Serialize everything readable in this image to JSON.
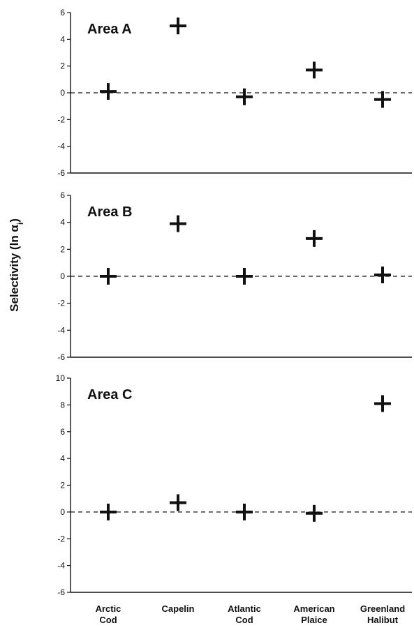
{
  "chart_data": [
    {
      "type": "scatter",
      "title": "Area A",
      "categories": [
        "Arctic Cod",
        "Capelin",
        "Atlantic Cod",
        "American Plaice",
        "Greenland Halibut"
      ],
      "values": [
        0.1,
        5.0,
        -0.3,
        1.7,
        -0.5
      ],
      "ylim": [
        -6,
        6
      ],
      "yticks": [
        6,
        4,
        2,
        0,
        -2,
        -4,
        -6
      ],
      "reference_line": 0
    },
    {
      "type": "scatter",
      "title": "Area B",
      "categories": [
        "Arctic Cod",
        "Capelin",
        "Atlantic Cod",
        "American Plaice",
        "Greenland Halibut"
      ],
      "values": [
        0.0,
        3.9,
        0.0,
        2.8,
        0.1
      ],
      "ylim": [
        -6,
        6
      ],
      "yticks": [
        6,
        4,
        2,
        0,
        -2,
        -4,
        -6
      ],
      "reference_line": 0
    },
    {
      "type": "scatter",
      "title": "Area C",
      "categories": [
        "Arctic Cod",
        "Capelin",
        "Atlantic Cod",
        "American Plaice",
        "Greenland Halibut"
      ],
      "values": [
        0.0,
        0.7,
        0.0,
        -0.1,
        8.1
      ],
      "ylim": [
        -6,
        10
      ],
      "yticks": [
        10,
        8,
        6,
        4,
        2,
        0,
        -2,
        -4,
        -6
      ],
      "reference_line": 0
    }
  ],
  "shared": {
    "ylabel": "Selectivity (ln α",
    "ylabel_subscript": "i",
    "ylabel_close": ")",
    "x_tick_labels": [
      [
        "Arctic",
        "Cod"
      ],
      [
        "Capelin"
      ],
      [
        "Atlantic",
        "Cod"
      ],
      [
        "American",
        "Plaice"
      ],
      [
        "Greenland",
        "Halibut"
      ]
    ],
    "marker": "plus",
    "color": "#111111"
  }
}
